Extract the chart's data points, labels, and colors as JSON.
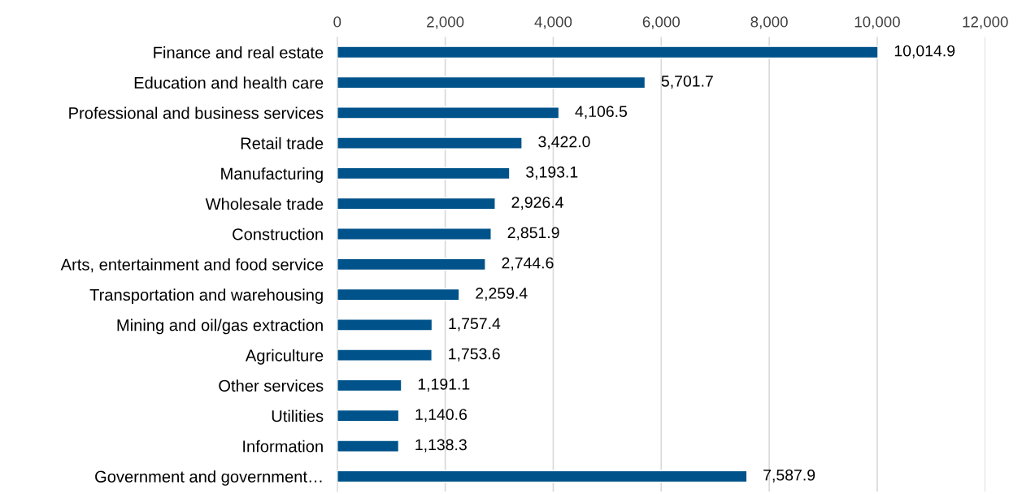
{
  "chart_data": {
    "type": "bar",
    "orientation": "horizontal",
    "categories": [
      "Finance and real estate",
      "Education and health care",
      "Professional and business services",
      "Retail trade",
      "Manufacturing",
      "Wholesale trade",
      "Construction",
      "Arts, entertainment and food service",
      "Transportation and warehousing",
      "Mining and oil/gas extraction",
      "Agriculture",
      "Other services",
      "Utilities",
      "Information",
      "Government and government…"
    ],
    "values": [
      10014.9,
      5701.7,
      4106.5,
      3422.0,
      3193.1,
      2926.4,
      2851.9,
      2744.6,
      2259.4,
      1757.4,
      1753.6,
      1191.1,
      1140.6,
      1138.3,
      7587.9
    ],
    "value_labels": [
      "10,014.9",
      "5,701.7",
      "4,106.5",
      "3,422.0",
      "3,193.1",
      "2,926.4",
      "2,851.9",
      "2,744.6",
      "2,259.4",
      "1,757.4",
      "1,753.6",
      "1,191.1",
      "1,140.6",
      "1,138.3",
      "7,587.9"
    ],
    "color": "#00538a",
    "xlim": [
      0,
      12000
    ],
    "xticks": [
      {
        "value": 0,
        "label": "0"
      },
      {
        "value": 2000,
        "label": "2,000"
      },
      {
        "value": 4000,
        "label": "4,000"
      },
      {
        "value": 6000,
        "label": "6,000"
      },
      {
        "value": 8000,
        "label": "8,000"
      },
      {
        "value": 10000,
        "label": "10,000"
      },
      {
        "value": 12000,
        "label": "12,000"
      }
    ],
    "grid": "x",
    "legend": false
  }
}
